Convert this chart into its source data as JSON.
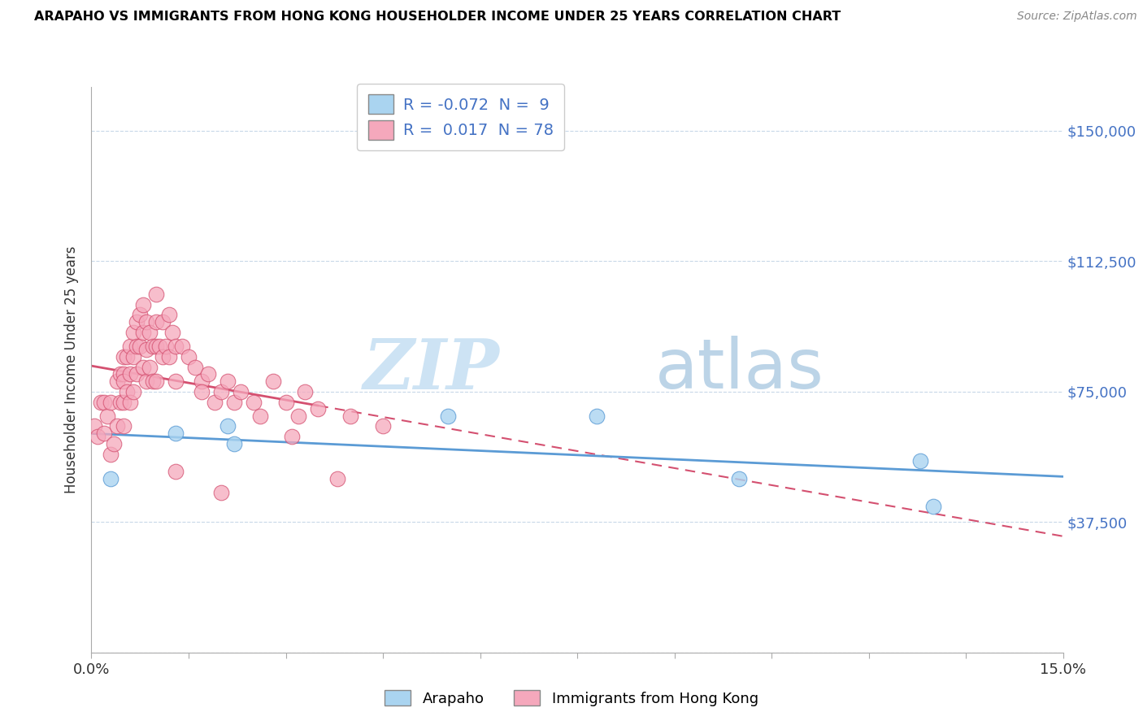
{
  "title": "ARAPAHO VS IMMIGRANTS FROM HONG KONG HOUSEHOLDER INCOME UNDER 25 YEARS CORRELATION CHART",
  "source": "Source: ZipAtlas.com",
  "ylabel": "Householder Income Under 25 years",
  "xlim": [
    0.0,
    15.0
  ],
  "ylim": [
    0,
    162500
  ],
  "yticks": [
    0,
    37500,
    75000,
    112500,
    150000
  ],
  "ytick_labels": [
    "",
    "$37,500",
    "$75,000",
    "$112,500",
    "$150,000"
  ],
  "xticks": [
    0.0,
    1.5,
    3.0,
    4.5,
    6.0,
    7.5,
    9.0,
    10.5,
    12.0,
    13.5,
    15.0
  ],
  "legend_r_arapaho": "-0.072",
  "legend_n_arapaho": "9",
  "legend_r_hk": "0.017",
  "legend_n_hk": "78",
  "color_arapaho": "#aad4f0",
  "color_hk": "#f5a8bc",
  "color_arapaho_line": "#5b9bd5",
  "color_hk_line": "#d45070",
  "watermark_1": "ZIP",
  "watermark_2": "atlas",
  "arapaho_x": [
    0.3,
    1.3,
    2.1,
    2.2,
    5.5,
    7.8,
    10.0,
    12.8,
    13.0
  ],
  "arapaho_y": [
    50000,
    63000,
    65000,
    60000,
    68000,
    68000,
    50000,
    55000,
    42000
  ],
  "hk_x": [
    0.05,
    0.1,
    0.15,
    0.2,
    0.2,
    0.25,
    0.3,
    0.3,
    0.35,
    0.4,
    0.4,
    0.45,
    0.45,
    0.5,
    0.5,
    0.5,
    0.5,
    0.5,
    0.55,
    0.55,
    0.6,
    0.6,
    0.6,
    0.65,
    0.65,
    0.65,
    0.7,
    0.7,
    0.7,
    0.75,
    0.75,
    0.8,
    0.8,
    0.8,
    0.85,
    0.85,
    0.85,
    0.9,
    0.9,
    0.95,
    0.95,
    1.0,
    1.0,
    1.0,
    1.0,
    1.05,
    1.1,
    1.1,
    1.15,
    1.2,
    1.2,
    1.25,
    1.3,
    1.3,
    1.4,
    1.5,
    1.6,
    1.7,
    1.8,
    1.9,
    2.0,
    2.1,
    2.2,
    2.3,
    2.5,
    2.8,
    3.0,
    3.2,
    3.3,
    3.5,
    4.0,
    4.5,
    1.3,
    2.0,
    3.8,
    1.7,
    2.6,
    3.1
  ],
  "hk_y": [
    65000,
    62000,
    72000,
    63000,
    72000,
    68000,
    57000,
    72000,
    60000,
    78000,
    65000,
    80000,
    72000,
    85000,
    80000,
    72000,
    65000,
    78000,
    85000,
    75000,
    88000,
    80000,
    72000,
    92000,
    85000,
    75000,
    95000,
    88000,
    80000,
    97000,
    88000,
    100000,
    92000,
    82000,
    95000,
    87000,
    78000,
    92000,
    82000,
    88000,
    78000,
    103000,
    95000,
    88000,
    78000,
    88000,
    95000,
    85000,
    88000,
    97000,
    85000,
    92000,
    88000,
    78000,
    88000,
    85000,
    82000,
    78000,
    80000,
    72000,
    75000,
    78000,
    72000,
    75000,
    72000,
    78000,
    72000,
    68000,
    75000,
    70000,
    68000,
    65000,
    52000,
    46000,
    50000,
    75000,
    68000,
    62000
  ]
}
